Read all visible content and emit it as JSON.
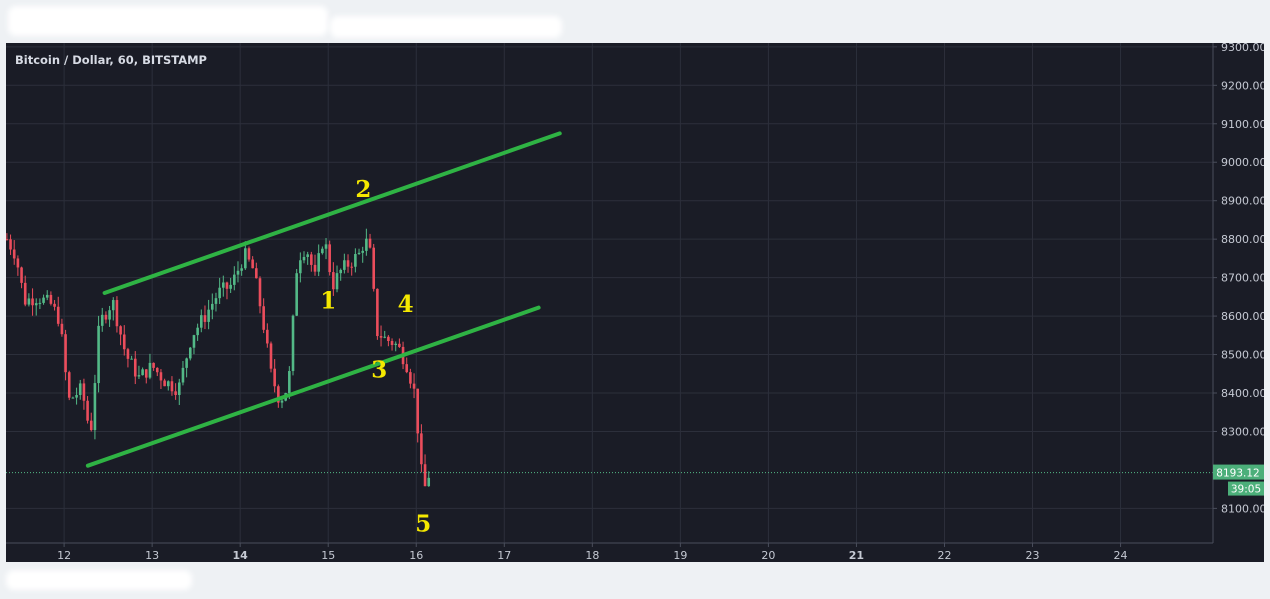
{
  "chart_data": {
    "type": "candlestick",
    "title": "Bitcoin / Dollar, 60, BITSTAMP",
    "y_ticks": [
      "9300.00",
      "9200.00",
      "9100.00",
      "9000.00",
      "8900.00",
      "8800.00",
      "8700.00",
      "8600.00",
      "8500.00",
      "8400.00",
      "8300.00",
      "8100.00"
    ],
    "ylim": [
      8010,
      9310
    ],
    "x_ticks": [
      {
        "label": "12",
        "day": 12,
        "bold": false
      },
      {
        "label": "13",
        "day": 13,
        "bold": false
      },
      {
        "label": "14",
        "day": 14,
        "bold": true
      },
      {
        "label": "15",
        "day": 15,
        "bold": false
      },
      {
        "label": "16",
        "day": 16,
        "bold": false
      },
      {
        "label": "17",
        "day": 17,
        "bold": false
      },
      {
        "label": "18",
        "day": 18,
        "bold": false
      },
      {
        "label": "19",
        "day": 19,
        "bold": false
      },
      {
        "label": "20",
        "day": 20,
        "bold": false
      },
      {
        "label": "21",
        "day": 21,
        "bold": true
      },
      {
        "label": "22",
        "day": 22,
        "bold": false
      },
      {
        "label": "23",
        "day": 23,
        "bold": false
      },
      {
        "label": "24",
        "day": 24,
        "bold": false
      }
    ],
    "xlim": [
      11.34,
      25.05
    ],
    "last_price": "8193.12",
    "last_price_value": 8193.12,
    "countdown": "39:05",
    "colors": {
      "up": "#53b987",
      "down": "#eb4d5c",
      "trendline": "#2fb344",
      "annotation": "#f5e800",
      "price_line": "#53b987"
    },
    "price_path": [
      [
        11.35,
        8800
      ],
      [
        11.45,
        8760
      ],
      [
        11.55,
        8640
      ],
      [
        11.7,
        8650
      ],
      [
        11.85,
        8630
      ],
      [
        11.95,
        8590
      ],
      [
        12.05,
        8380
      ],
      [
        12.2,
        8410
      ],
      [
        12.3,
        8290
      ],
      [
        12.4,
        8580
      ],
      [
        12.55,
        8640
      ],
      [
        12.7,
        8500
      ],
      [
        12.85,
        8440
      ],
      [
        13.0,
        8470
      ],
      [
        13.15,
        8430
      ],
      [
        13.3,
        8410
      ],
      [
        13.45,
        8550
      ],
      [
        13.6,
        8600
      ],
      [
        13.75,
        8660
      ],
      [
        13.9,
        8680
      ],
      [
        14.05,
        8760
      ],
      [
        14.15,
        8720
      ],
      [
        14.25,
        8600
      ],
      [
        14.35,
        8450
      ],
      [
        14.45,
        8380
      ],
      [
        14.55,
        8420
      ],
      [
        14.65,
        8750
      ],
      [
        14.75,
        8780
      ],
      [
        14.85,
        8700
      ],
      [
        14.95,
        8810
      ],
      [
        15.05,
        8680
      ],
      [
        15.15,
        8720
      ],
      [
        15.25,
        8740
      ],
      [
        15.35,
        8760
      ],
      [
        15.42,
        8800
      ],
      [
        15.48,
        8760
      ],
      [
        15.55,
        8560
      ],
      [
        15.65,
        8540
      ],
      [
        15.75,
        8530
      ],
      [
        15.82,
        8510
      ],
      [
        15.9,
        8470
      ],
      [
        15.98,
        8400
      ],
      [
        16.04,
        8250
      ],
      [
        16.08,
        8130
      ],
      [
        16.12,
        8180
      ],
      [
        16.16,
        8193
      ]
    ],
    "trendlines": [
      {
        "name": "upper-channel",
        "x1": 12.46,
        "y1": 8660,
        "x2": 17.63,
        "y2": 9075
      },
      {
        "name": "lower-channel",
        "x1": 12.27,
        "y1": 8211,
        "x2": 17.39,
        "y2": 8622
      }
    ],
    "annotations": [
      {
        "label": "1",
        "x": 15.0,
        "y": 8620
      },
      {
        "label": "2",
        "x": 15.4,
        "y": 8910
      },
      {
        "label": "3",
        "x": 15.58,
        "y": 8440
      },
      {
        "label": "4",
        "x": 15.88,
        "y": 8610
      },
      {
        "label": "5",
        "x": 16.08,
        "y": 8040
      }
    ]
  }
}
